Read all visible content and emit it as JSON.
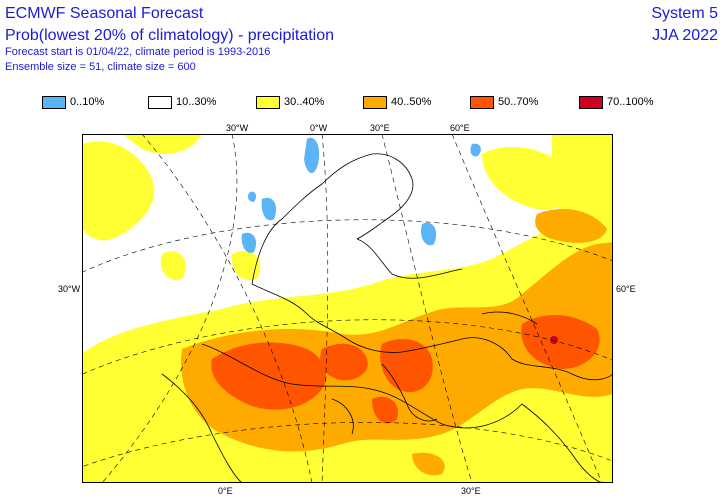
{
  "header": {
    "title": "ECMWF Seasonal Forecast",
    "subtitle": "Prob(lowest 20% of climatology) - precipitation",
    "forecast_info": "Forecast start is 01/04/22, climate period is 1993-2016",
    "ensemble_info": "Ensemble size = 51, climate size = 600",
    "system": "System 5",
    "season": "JJA 2022"
  },
  "legend": [
    {
      "label": "0..10%",
      "color": "#5ab4f5"
    },
    {
      "label": "10..30%",
      "color": "#ffffff"
    },
    {
      "label": "30..40%",
      "color": "#ffff33"
    },
    {
      "label": "40..50%",
      "color": "#ffaa00"
    },
    {
      "label": "50..70%",
      "color": "#ff5500"
    },
    {
      "label": "70..100%",
      "color": "#cc0022"
    }
  ],
  "map": {
    "top_labels": [
      "30°W",
      "0°W",
      "30°E",
      "60°E"
    ],
    "left_label": "30°W",
    "right_label": "60°E",
    "bottom_labels": [
      "0°E",
      "30°E"
    ]
  }
}
